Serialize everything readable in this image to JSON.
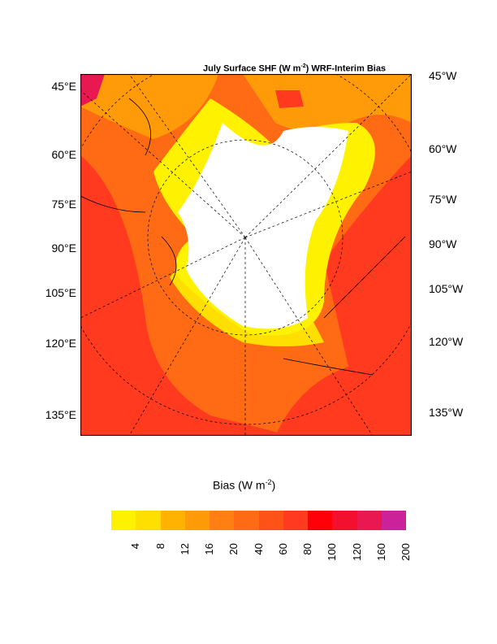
{
  "title": {
    "main": "July Surface SHF (W m",
    "sup": "-2",
    "rest": ") WRF-Interim Bias"
  },
  "left_labels": [
    "45°E",
    "60°E",
    "75°E",
    "90°E",
    "105°E",
    "120°E",
    "135°E"
  ],
  "right_labels": [
    "45°W",
    "60°W",
    "75°W",
    "90°W",
    "105°W",
    "120°W",
    "135°W"
  ],
  "colorbar": {
    "title": "Bias (W m",
    "title_sup": "-2",
    "title_end": ")",
    "ticks": [
      "4",
      "8",
      "12",
      "16",
      "20",
      "40",
      "60",
      "80",
      "100",
      "120",
      "160",
      "200"
    ],
    "colors": [
      "#FFF200",
      "#FFDF00",
      "#FFB200",
      "#FF9A08",
      "#FF7F12",
      "#FF6A14",
      "#FF5218",
      "#FF3A1E",
      "#FF0008",
      "#F2102E",
      "#EA1850",
      "#CC2299"
    ]
  }
}
